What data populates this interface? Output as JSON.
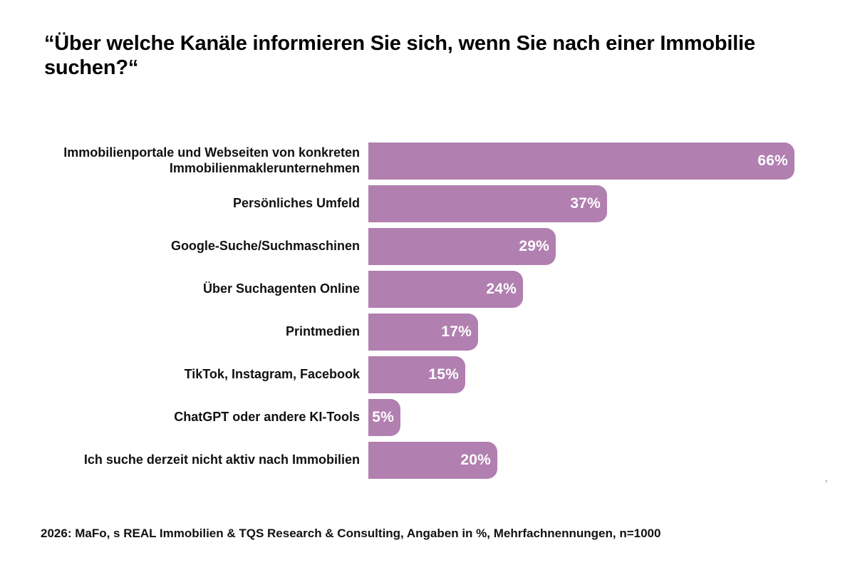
{
  "title": "“Über welche Kanäle informieren Sie sich, wenn Sie nach einer Immobilie suchen?“",
  "footer": "2026: MaFo, s REAL Immobilien & TQS Research & Consulting, Angaben in %, Mehrfachnennungen, n=1000",
  "stray_mark": "’",
  "colors": {
    "bar": "#b17fb0",
    "value_label": "#ffffff",
    "text": "#111111",
    "background": "#ffffff"
  },
  "chart_data": {
    "type": "bar",
    "orientation": "horizontal",
    "title": "“Über welche Kanäle informieren Sie sich, wenn Sie nach einer Immobilie suchen?“",
    "categories": [
      "Immobilienportale und Webseiten von konkreten Immobilienmaklerunternehmen",
      "Persönliches Umfeld",
      "Google-Suche/Suchmaschinen",
      "Über Suchagenten Online",
      "Printmedien",
      "TikTok, Instagram, Facebook",
      "ChatGPT oder andere KI-Tools",
      "Ich suche derzeit nicht aktiv nach Immobilien"
    ],
    "values": [
      66,
      37,
      29,
      24,
      17,
      15,
      5,
      20
    ],
    "value_labels": [
      "66%",
      "37%",
      "29%",
      "24%",
      "17%",
      "15%",
      "5%",
      "20%"
    ],
    "unit": "%",
    "xlim": [
      0,
      66
    ],
    "grid": false,
    "legend": false,
    "xlabel": "",
    "ylabel": ""
  }
}
